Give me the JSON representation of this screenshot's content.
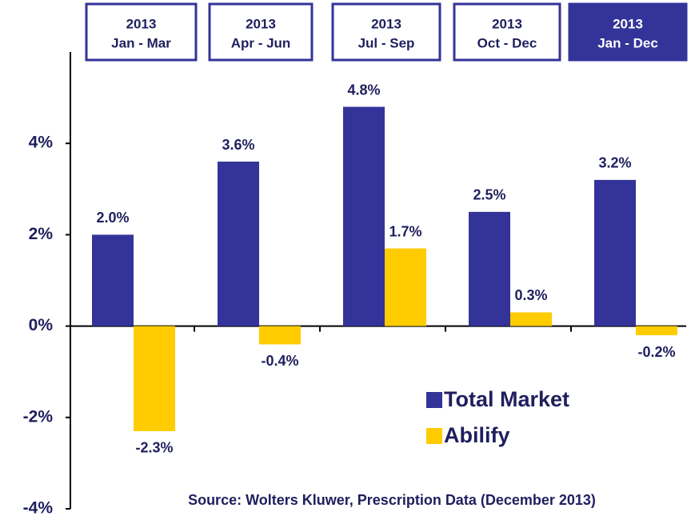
{
  "chart_data": {
    "type": "bar",
    "category_years": [
      "2013",
      "2013",
      "2013",
      "2013",
      "2013"
    ],
    "categories": [
      "Jan - Mar",
      "Apr - Jun",
      "Jul - Sep",
      "Oct - Dec",
      "Jan - Dec"
    ],
    "series": [
      {
        "name": "Total Market",
        "color": "#333399",
        "values": [
          2.0,
          3.6,
          4.8,
          2.5,
          3.2
        ],
        "value_labels": [
          "2.0%",
          "3.6%",
          "4.8%",
          "2.5%",
          "3.2%"
        ]
      },
      {
        "name": "Abilify",
        "color": "#ffcc00",
        "values": [
          -2.3,
          -0.4,
          1.7,
          0.3,
          -0.2
        ],
        "value_labels": [
          "-2.3%",
          "-0.4%",
          "1.7%",
          "0.3%",
          "-0.2%"
        ]
      }
    ],
    "ylim": [
      -4,
      6
    ],
    "yticks": [
      {
        "value": -4,
        "label": "-4%"
      },
      {
        "value": -2,
        "label": "-2%"
      },
      {
        "value": 0,
        "label": "0%"
      },
      {
        "value": 2,
        "label": "2%"
      },
      {
        "value": 4,
        "label": "4%"
      }
    ],
    "source": "Source: Wolters Kluwer, Prescription Data (December 2013)"
  }
}
